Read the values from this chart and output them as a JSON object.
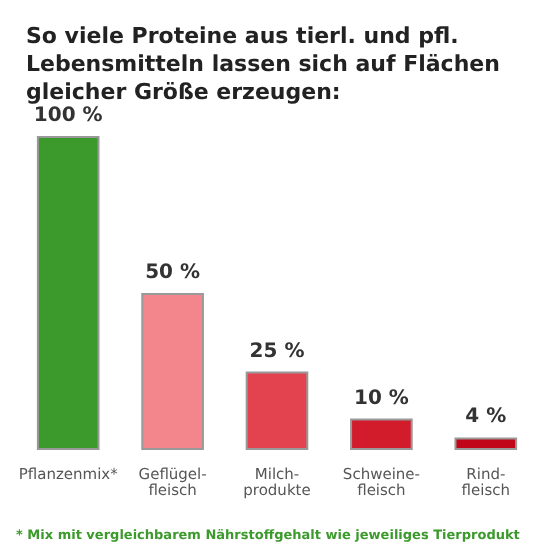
{
  "chart_data": {
    "type": "bar",
    "title": "So viele Proteine aus tierl. und pfl. Lebensmitteln lassen sich auf Flächen gleicher Größe erzeugen:",
    "categories": [
      "Pflanzenmix*",
      "Geflügel-\nfleisch",
      "Milch-\nprodukte",
      "Schweine-\nfleisch",
      "Rind-\nfleisch"
    ],
    "values": [
      100,
      50,
      25,
      10,
      4
    ],
    "colors": [
      "#3c9a2c",
      "#f2868c",
      "#e3434e",
      "#d21c2c",
      "#c2061a"
    ],
    "value_labels": [
      "100 %",
      "50 %",
      "25 %",
      "10 %",
      "4 %"
    ],
    "annotations": [
      "* Mix mit vergleichbarem Nährstoffgehalt wie jeweiliges Tierprodukt"
    ]
  }
}
